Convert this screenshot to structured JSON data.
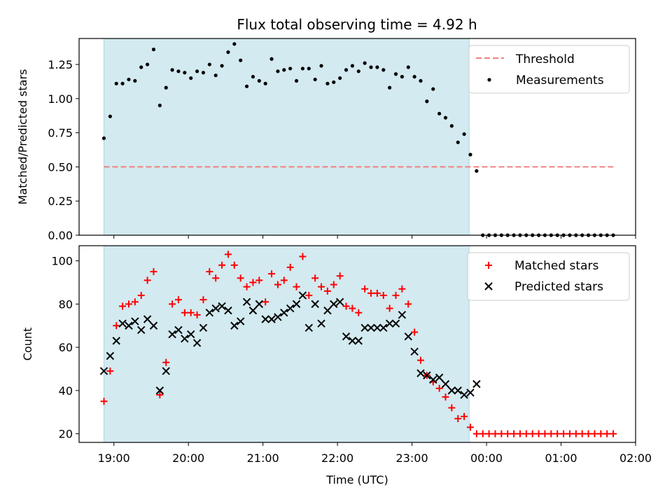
{
  "chart_data": [
    {
      "type": "scatter",
      "title": "Flux total observing time = 4.92 h",
      "ylabel": "Matched/Predicted stars",
      "xlabel": "",
      "ylim": [
        0,
        1.44
      ],
      "xlim": [
        "18:32",
        "02:00"
      ],
      "y_ticks": [
        "0.00",
        "0.25",
        "0.50",
        "0.75",
        "1.00",
        "1.25"
      ],
      "y_tick_values": [
        0,
        0.25,
        0.5,
        0.75,
        1.0,
        1.25
      ],
      "legend_position": "upper right",
      "shaded_region": {
        "start": "18:52",
        "end": "23:46",
        "color": "#d3eaf0"
      },
      "threshold": {
        "name": "Threshold",
        "value": 0.5,
        "from": "18:52",
        "to": "01:42",
        "color": "#f08080"
      },
      "series": [
        {
          "name": "Measurements",
          "marker": "dot",
          "color": "#000000",
          "x": [
            "18:52",
            "18:57",
            "19:02",
            "19:07",
            "19:12",
            "19:17",
            "19:22",
            "19:27",
            "19:32",
            "19:37",
            "19:42",
            "19:47",
            "19:52",
            "19:57",
            "20:02",
            "20:07",
            "20:12",
            "20:17",
            "20:22",
            "20:27",
            "20:32",
            "20:37",
            "20:42",
            "20:47",
            "20:52",
            "20:57",
            "21:02",
            "21:07",
            "21:12",
            "21:17",
            "21:22",
            "21:27",
            "21:32",
            "21:37",
            "21:42",
            "21:47",
            "21:52",
            "21:57",
            "22:02",
            "22:07",
            "22:12",
            "22:17",
            "22:22",
            "22:27",
            "22:32",
            "22:37",
            "22:42",
            "22:47",
            "22:52",
            "22:57",
            "23:02",
            "23:07",
            "23:12",
            "23:17",
            "23:22",
            "23:27",
            "23:32",
            "23:37",
            "23:42",
            "23:47",
            "23:52",
            "23:57",
            "00:02",
            "00:07",
            "00:12",
            "00:17",
            "00:22",
            "00:27",
            "00:32",
            "00:37",
            "00:42",
            "00:47",
            "00:52",
            "00:57",
            "01:02",
            "01:07",
            "01:12",
            "01:17",
            "01:22",
            "01:27",
            "01:32",
            "01:37",
            "01:42"
          ],
          "y": [
            0.71,
            0.87,
            1.11,
            1.11,
            1.14,
            1.13,
            1.23,
            1.25,
            1.36,
            0.95,
            1.08,
            1.21,
            1.2,
            1.19,
            1.15,
            1.2,
            1.19,
            1.25,
            1.17,
            1.24,
            1.34,
            1.4,
            1.28,
            1.09,
            1.16,
            1.13,
            1.11,
            1.29,
            1.2,
            1.21,
            1.22,
            1.13,
            1.22,
            1.22,
            1.14,
            1.24,
            1.11,
            1.12,
            1.15,
            1.21,
            1.24,
            1.2,
            1.26,
            1.23,
            1.23,
            1.21,
            1.08,
            1.18,
            1.16,
            1.23,
            1.16,
            1.13,
            0.98,
            1.07,
            0.89,
            0.86,
            0.8,
            0.68,
            0.74,
            0.59,
            0.47,
            0,
            0,
            0,
            0,
            0,
            0,
            0,
            0,
            0,
            0,
            0,
            0,
            0,
            0,
            0,
            0,
            0,
            0,
            0,
            0,
            0,
            0
          ]
        }
      ]
    },
    {
      "type": "scatter",
      "title": "",
      "xlabel": "Time (UTC)",
      "ylabel": "Count",
      "ylim": [
        16,
        107
      ],
      "xlim": [
        "18:32",
        "02:00"
      ],
      "x_ticks": [
        "19:00",
        "20:00",
        "21:00",
        "22:00",
        "23:00",
        "00:00",
        "01:00",
        "02:00"
      ],
      "y_ticks": [
        "20",
        "40",
        "60",
        "80",
        "100"
      ],
      "y_tick_values": [
        20,
        40,
        60,
        80,
        100
      ],
      "legend_position": "upper right",
      "shaded_region": {
        "start": "18:52",
        "end": "23:46",
        "color": "#d3eaf0"
      },
      "series": [
        {
          "name": "Matched stars",
          "marker": "plus",
          "color": "#ff0000",
          "x": [
            "18:52",
            "18:57",
            "19:02",
            "19:07",
            "19:12",
            "19:17",
            "19:22",
            "19:27",
            "19:32",
            "19:37",
            "19:42",
            "19:47",
            "19:52",
            "19:57",
            "20:02",
            "20:07",
            "20:12",
            "20:17",
            "20:22",
            "20:27",
            "20:32",
            "20:37",
            "20:42",
            "20:47",
            "20:52",
            "20:57",
            "21:02",
            "21:07",
            "21:12",
            "21:17",
            "21:22",
            "21:27",
            "21:32",
            "21:37",
            "21:42",
            "21:47",
            "21:52",
            "21:57",
            "22:02",
            "22:07",
            "22:12",
            "22:17",
            "22:22",
            "22:27",
            "22:32",
            "22:37",
            "22:42",
            "22:47",
            "22:52",
            "22:57",
            "23:02",
            "23:07",
            "23:12",
            "23:17",
            "23:22",
            "23:27",
            "23:32",
            "23:37",
            "23:42",
            "23:47",
            "23:52",
            "23:57",
            "00:02",
            "00:07",
            "00:12",
            "00:17",
            "00:22",
            "00:27",
            "00:32",
            "00:37",
            "00:42",
            "00:47",
            "00:52",
            "00:57",
            "01:02",
            "01:07",
            "01:12",
            "01:17",
            "01:22",
            "01:27",
            "01:32",
            "01:37",
            "01:42"
          ],
          "y": [
            35,
            49,
            70,
            79,
            80,
            81,
            84,
            91,
            95,
            38,
            53,
            80,
            82,
            76,
            76,
            75,
            82,
            95,
            92,
            98,
            103,
            98,
            92,
            88,
            90,
            91,
            81,
            94,
            89,
            91,
            97,
            88,
            102,
            84,
            92,
            88,
            86,
            89,
            93,
            79,
            78,
            76,
            87,
            85,
            85,
            84,
            78,
            84,
            87,
            80,
            67,
            54,
            47,
            44,
            41,
            37,
            32,
            27,
            28,
            23,
            20,
            20,
            20,
            20,
            20,
            20,
            20,
            20,
            20,
            20,
            20,
            20,
            20,
            20,
            20,
            20,
            20,
            20,
            20,
            20,
            20,
            20,
            20
          ]
        },
        {
          "name": "Predicted stars",
          "marker": "x",
          "color": "#000000",
          "x": [
            "18:52",
            "18:57",
            "19:02",
            "19:07",
            "19:12",
            "19:17",
            "19:22",
            "19:27",
            "19:32",
            "19:37",
            "19:42",
            "19:47",
            "19:52",
            "19:57",
            "20:02",
            "20:07",
            "20:12",
            "20:17",
            "20:22",
            "20:27",
            "20:32",
            "20:37",
            "20:42",
            "20:47",
            "20:52",
            "20:57",
            "21:02",
            "21:07",
            "21:12",
            "21:17",
            "21:22",
            "21:27",
            "21:32",
            "21:37",
            "21:42",
            "21:47",
            "21:52",
            "21:57",
            "22:02",
            "22:07",
            "22:12",
            "22:17",
            "22:22",
            "22:27",
            "22:32",
            "22:37",
            "22:42",
            "22:47",
            "22:52",
            "22:57",
            "23:02",
            "23:07",
            "23:12",
            "23:17",
            "23:22",
            "23:27",
            "23:32",
            "23:37",
            "23:42",
            "23:47",
            "23:52"
          ],
          "y": [
            49,
            56,
            63,
            71,
            70,
            72,
            68,
            73,
            70,
            40,
            49,
            66,
            68,
            64,
            66,
            62,
            69,
            76,
            78,
            79,
            77,
            70,
            72,
            81,
            77,
            80,
            73,
            73,
            74,
            76,
            78,
            80,
            84,
            69,
            80,
            71,
            77,
            80,
            81,
            65,
            63,
            63,
            69,
            69,
            69,
            69,
            71,
            71,
            75,
            65,
            58,
            48,
            47,
            45,
            46,
            43,
            40,
            40,
            38,
            39,
            43
          ]
        }
      ]
    }
  ]
}
